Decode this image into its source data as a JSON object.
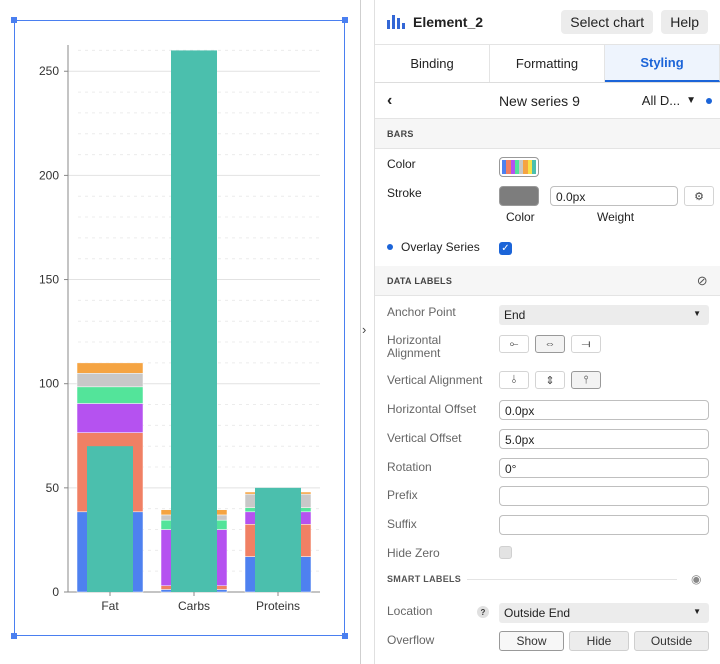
{
  "header": {
    "element_name": "Element_2",
    "select_chart_label": "Select chart",
    "help_label": "Help"
  },
  "tabs": [
    {
      "label": "Binding",
      "active": false
    },
    {
      "label": "Formatting",
      "active": false
    },
    {
      "label": "Styling",
      "active": true
    }
  ],
  "series_bar": {
    "name": "New series 9",
    "selector": "All D..."
  },
  "bars_section": {
    "title": "BARS",
    "color_label": "Color",
    "stroke_label": "Stroke",
    "stroke_weight": "0.0px",
    "color_caption": "Color",
    "weight_caption": "Weight",
    "overlay_label": "Overlay Series",
    "overlay_checked": true,
    "palette": [
      "#4e81f0",
      "#f08064",
      "#b552f0",
      "#53e49a",
      "#c8c8c8",
      "#f5a442",
      "#f7e34a",
      "#4bbfad"
    ],
    "stroke_color": "#7d7d7d"
  },
  "data_labels": {
    "title": "DATA LABELS",
    "anchor_label": "Anchor Point",
    "anchor_value": "End",
    "halign_label": "Horizontal Alignment",
    "valign_label": "Vertical Alignment",
    "hoffset_label": "Horizontal Offset",
    "hoffset_value": "0.0px",
    "voffset_label": "Vertical Offset",
    "voffset_value": "5.0px",
    "rotation_label": "Rotation",
    "rotation_value": "0°",
    "prefix_label": "Prefix",
    "prefix_value": "",
    "suffix_label": "Suffix",
    "suffix_value": "",
    "hidezero_label": "Hide Zero"
  },
  "smart_labels": {
    "title": "SMART LABELS",
    "location_label": "Location",
    "location_value": "Outside End",
    "overflow_label": "Overflow",
    "overflow_options": [
      "Show",
      "Hide",
      "Outside"
    ],
    "overflow_selected": "Show"
  },
  "chart_data": {
    "type": "bar",
    "categories": [
      "Fat",
      "Carbs",
      "Proteins"
    ],
    "ylim": [
      0,
      265
    ],
    "yticks": [
      0,
      50,
      100,
      150,
      200,
      250
    ],
    "stack_colors": [
      "#4e81f0",
      "#f08064",
      "#b552f0",
      "#53e49a",
      "#c8c8c8",
      "#f5a442"
    ],
    "stacks": [
      [
        38.5,
        38,
        14,
        8,
        6.5,
        5
      ],
      [
        1.2,
        1.8,
        27,
        4.5,
        2.5,
        2.5
      ],
      [
        17,
        15.5,
        6,
        2,
        6.5,
        1
      ]
    ],
    "overlay_color": "#4bbfad",
    "overlay_values": [
      70,
      260,
      50
    ]
  }
}
